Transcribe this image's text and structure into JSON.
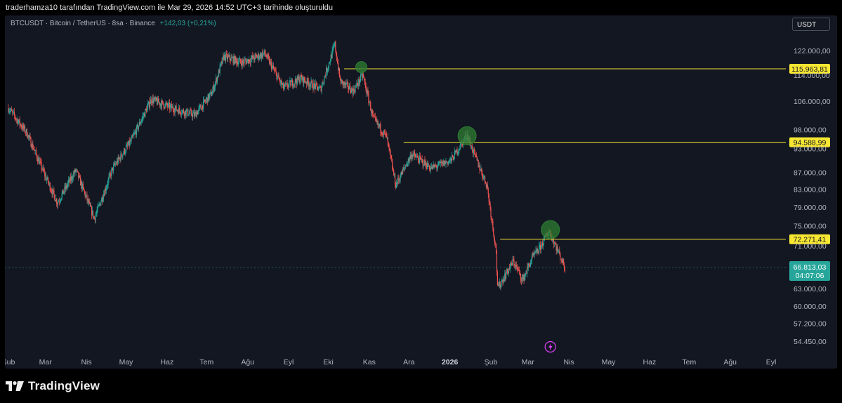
{
  "header": {
    "credit": "traderhamza10 tarafından TradingView.com ile Mar 29, 2026 14:52 UTC+3 tarihinde oluşturuldu"
  },
  "chart_header": {
    "symbol_line": "BTCUSDT · Bitcoin / TetherUS · 8sa · Binance",
    "change": "+142,03 (+0,21%)",
    "currency": "USDT"
  },
  "footer": {
    "brand": "TradingView"
  },
  "colors": {
    "up": "#26a69a",
    "down": "#ef5350",
    "level": "#f7e632",
    "marker": "#2e7d32",
    "background": "#131722"
  },
  "chart_data": {
    "type": "line",
    "style": "candlestick",
    "title": "",
    "xlabel": "",
    "ylabel": "",
    "y_scale": "log",
    "ylim": [
      52500,
      131000
    ],
    "x_tick_labels": [
      "Şub",
      "Mar",
      "Nis",
      "May",
      "Haz",
      "Tem",
      "Ağu",
      "Eyl",
      "Eki",
      "Kas",
      "Ara",
      "2026",
      "Şub",
      "Mar",
      "Nis",
      "May",
      "Haz",
      "Tem",
      "Ağu",
      "Eyl"
    ],
    "x_tick_bold": [
      false,
      false,
      false,
      false,
      false,
      false,
      false,
      false,
      false,
      false,
      false,
      true,
      false,
      false,
      false,
      false,
      false,
      false,
      false,
      false
    ],
    "y_tick_labels": [
      "122.000,00",
      "114.000,00",
      "106.000,00",
      "98.000,00",
      "93.000,00",
      "87.000,00",
      "83.000,00",
      "79.000,00",
      "75.000,00",
      "71.000,00",
      "63.000,00",
      "60.000,00",
      "57.200,00",
      "54.450,00"
    ],
    "y_tick_values": [
      122000,
      114000,
      106000,
      98000,
      93000,
      87000,
      83000,
      79000,
      75000,
      71000,
      63000,
      60000,
      57200,
      54450
    ],
    "series": [
      {
        "x": [
          "2025-02-01",
          "2025-02-15",
          "2025-03-01",
          "2025-03-10",
          "2025-03-24",
          "2025-04-07",
          "2025-04-21",
          "2025-05-05",
          "2025-05-20",
          "2025-06-05",
          "2025-06-22",
          "2025-07-05",
          "2025-07-14",
          "2025-07-28",
          "2025-08-14",
          "2025-08-28",
          "2025-09-10",
          "2025-09-25",
          "2025-10-06",
          "2025-10-10",
          "2025-10-20",
          "2025-10-27",
          "2025-11-04",
          "2025-11-14",
          "2025-11-21",
          "2025-12-03",
          "2025-12-18",
          "2026-01-02",
          "2026-01-14",
          "2026-01-20",
          "2026-01-29",
          "2026-02-05",
          "2026-02-06",
          "2026-02-18",
          "2026-02-25",
          "2026-03-04",
          "2026-03-10",
          "2026-03-17",
          "2026-03-22",
          "2026-03-27",
          "2026-03-29"
        ],
        "values": [
          104000,
          97000,
          86000,
          80000,
          87500,
          76500,
          88000,
          95000,
          106500,
          104000,
          102000,
          108500,
          120000,
          118000,
          121000,
          110000,
          113000,
          109500,
          124000,
          112000,
          109000,
          114000,
          101000,
          96000,
          84000,
          91500,
          88000,
          90000,
          96500,
          91000,
          84000,
          70000,
          63000,
          68000,
          64500,
          68500,
          70500,
          74000,
          71000,
          68000,
          66813.03
        ]
      }
    ],
    "last_price": "66.813,03",
    "countdown": "04:07:06",
    "levels": [
      {
        "label": "115.963,81",
        "value": 115963.81,
        "from": "2025-10-13"
      },
      {
        "label": "94.588,99",
        "value": 94588.99,
        "from": "2025-11-27"
      },
      {
        "label": "72.271,41",
        "value": 72271.41,
        "from": "2026-02-08"
      }
    ],
    "markers": [
      {
        "date": "2025-10-26",
        "value": 116500
      },
      {
        "date": "2026-01-14",
        "value": 96300
      },
      {
        "date": "2026-03-18",
        "value": 74200
      }
    ],
    "event_icon": "lightning-icon",
    "event_date": "2026-03-18",
    "grid": false,
    "legend": "none"
  }
}
